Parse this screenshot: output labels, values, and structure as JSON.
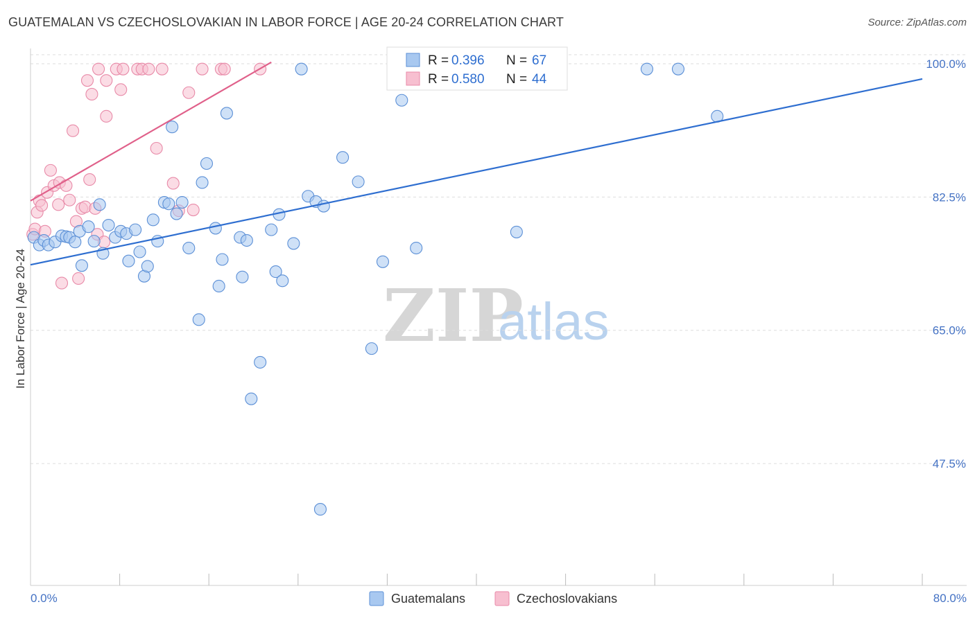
{
  "title": "GUATEMALAN VS CZECHOSLOVAKIAN IN LABOR FORCE | AGE 20-24 CORRELATION CHART",
  "source": "Source: ZipAtlas.com",
  "watermark": {
    "zip": "ZIP",
    "atlas": "atlas"
  },
  "colors": {
    "blue_fill": "#a8c8f0",
    "blue_stroke": "#5b8fd6",
    "blue_line": "#2e6ed0",
    "pink_fill": "#f7bfd0",
    "pink_stroke": "#e88aa8",
    "pink_line": "#e0608a",
    "axis_text": "#4472c4",
    "grid": "#dddddd"
  },
  "stats": {
    "r_label": "R =",
    "n_label": "N =",
    "rows": [
      {
        "r": "0.396",
        "n": "67",
        "color": "blue"
      },
      {
        "r": "0.580",
        "n": "44",
        "color": "pink"
      }
    ]
  },
  "legend": [
    {
      "label": "Guatemalans",
      "color": "blue"
    },
    {
      "label": "Czechoslovakians",
      "color": "pink"
    }
  ],
  "chart_data": {
    "type": "scatter",
    "xlabel": "",
    "ylabel": "In Labor Force | Age 20-24",
    "xlim": [
      0,
      80
    ],
    "ylim": [
      31.5,
      102
    ],
    "x_ticks": [
      0,
      80
    ],
    "x_tick_labels": [
      "0.0%",
      "80.0%"
    ],
    "y_ticks": [
      47.5,
      65.0,
      82.5,
      100.0
    ],
    "y_tick_labels": [
      "47.5%",
      "65.0%",
      "82.5%",
      "100.0%"
    ],
    "grid": "horizontal dashed",
    "series": [
      {
        "name": "Guatemalans",
        "color": "blue",
        "trend": {
          "x0": 0,
          "y0": 73.6,
          "x1": 80,
          "y1": 98.0
        },
        "points": [
          [
            0.3,
            77.2
          ],
          [
            0.8,
            76.2
          ],
          [
            1.2,
            76.8
          ],
          [
            1.6,
            76.2
          ],
          [
            2.2,
            76.6
          ],
          [
            2.8,
            77.4
          ],
          [
            3.2,
            77.3
          ],
          [
            3.5,
            77.2
          ],
          [
            4.0,
            76.6
          ],
          [
            4.4,
            78.0
          ],
          [
            4.6,
            73.5
          ],
          [
            5.2,
            78.6
          ],
          [
            5.7,
            76.7
          ],
          [
            6.2,
            81.5
          ],
          [
            6.5,
            75.1
          ],
          [
            7.0,
            78.8
          ],
          [
            7.6,
            77.2
          ],
          [
            8.1,
            78.0
          ],
          [
            8.6,
            77.7
          ],
          [
            8.8,
            74.1
          ],
          [
            9.4,
            78.2
          ],
          [
            9.8,
            75.3
          ],
          [
            10.2,
            72.1
          ],
          [
            10.5,
            73.4
          ],
          [
            11.0,
            79.5
          ],
          [
            11.4,
            76.7
          ],
          [
            12.0,
            81.8
          ],
          [
            12.4,
            81.6
          ],
          [
            12.7,
            91.7
          ],
          [
            13.1,
            80.3
          ],
          [
            13.6,
            81.8
          ],
          [
            14.2,
            75.8
          ],
          [
            15.1,
            66.4
          ],
          [
            15.4,
            84.4
          ],
          [
            15.8,
            86.9
          ],
          [
            16.6,
            78.4
          ],
          [
            16.9,
            70.8
          ],
          [
            17.2,
            74.3
          ],
          [
            17.6,
            93.5
          ],
          [
            18.8,
            77.2
          ],
          [
            19.0,
            72.0
          ],
          [
            19.4,
            76.8
          ],
          [
            19.8,
            56.0
          ],
          [
            20.6,
            60.8
          ],
          [
            21.6,
            78.2
          ],
          [
            22.0,
            72.7
          ],
          [
            22.3,
            80.2
          ],
          [
            22.6,
            71.5
          ],
          [
            23.6,
            76.4
          ],
          [
            24.3,
            99.3
          ],
          [
            24.9,
            82.6
          ],
          [
            25.6,
            81.9
          ],
          [
            26.0,
            41.5
          ],
          [
            26.3,
            81.3
          ],
          [
            28.0,
            87.7
          ],
          [
            29.4,
            84.5
          ],
          [
            30.6,
            62.6
          ],
          [
            31.6,
            74.0
          ],
          [
            33.3,
            95.2
          ],
          [
            34.6,
            75.8
          ],
          [
            35.8,
            99.3
          ],
          [
            40.1,
            99.4
          ],
          [
            43.6,
            77.9
          ],
          [
            43.9,
            99.3
          ],
          [
            55.3,
            99.3
          ],
          [
            58.1,
            99.3
          ],
          [
            61.6,
            93.1
          ]
        ]
      },
      {
        "name": "Czechoslovakians",
        "color": "pink",
        "trend": {
          "x0": 0,
          "y0": 82.0,
          "x1": 21.6,
          "y1": 100.2
        },
        "points": [
          [
            0.2,
            77.6
          ],
          [
            0.4,
            78.3
          ],
          [
            0.6,
            80.5
          ],
          [
            0.8,
            82.0
          ],
          [
            1.0,
            81.4
          ],
          [
            1.3,
            78.0
          ],
          [
            1.5,
            83.1
          ],
          [
            1.8,
            86.0
          ],
          [
            2.1,
            84.0
          ],
          [
            2.5,
            81.5
          ],
          [
            2.6,
            84.4
          ],
          [
            2.8,
            71.2
          ],
          [
            3.2,
            84.0
          ],
          [
            3.5,
            82.1
          ],
          [
            3.8,
            91.2
          ],
          [
            4.1,
            79.3
          ],
          [
            4.3,
            71.8
          ],
          [
            4.6,
            81.0
          ],
          [
            4.9,
            81.2
          ],
          [
            5.1,
            97.8
          ],
          [
            5.3,
            84.8
          ],
          [
            5.5,
            96.0
          ],
          [
            5.8,
            81.0
          ],
          [
            6.0,
            77.6
          ],
          [
            6.1,
            99.3
          ],
          [
            6.6,
            76.6
          ],
          [
            6.8,
            97.8
          ],
          [
            6.8,
            93.1
          ],
          [
            7.7,
            99.3
          ],
          [
            8.1,
            96.6
          ],
          [
            8.3,
            99.3
          ],
          [
            9.6,
            99.3
          ],
          [
            10.0,
            99.3
          ],
          [
            10.6,
            99.3
          ],
          [
            11.3,
            88.9
          ],
          [
            11.8,
            99.3
          ],
          [
            12.8,
            84.3
          ],
          [
            13.3,
            80.7
          ],
          [
            14.2,
            96.2
          ],
          [
            14.6,
            80.8
          ],
          [
            15.4,
            99.3
          ],
          [
            17.1,
            99.3
          ],
          [
            17.4,
            99.3
          ],
          [
            20.6,
            99.3
          ]
        ]
      }
    ]
  }
}
